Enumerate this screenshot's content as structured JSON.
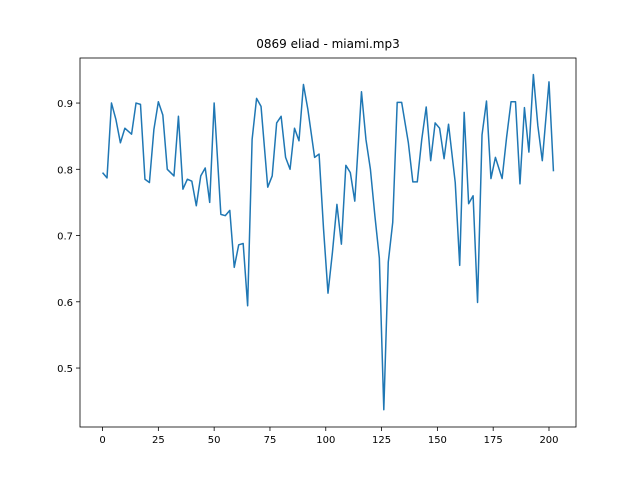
{
  "chart_data": {
    "type": "line",
    "title": "0869 eliad - miami.mp3",
    "x": [
      0,
      2,
      4,
      6,
      8,
      10,
      13,
      15,
      17,
      19,
      21,
      23,
      25,
      27,
      29,
      32,
      34,
      36,
      38,
      40,
      42,
      44,
      46,
      48,
      50,
      53,
      55,
      57,
      59,
      61,
      63,
      65,
      67,
      69,
      71,
      74,
      76,
      78,
      80,
      82,
      84,
      86,
      88,
      90,
      92,
      95,
      97,
      99,
      101,
      103,
      105,
      107,
      109,
      111,
      113,
      116,
      118,
      120,
      122,
      124,
      126,
      128,
      130,
      132,
      134,
      137,
      139,
      141,
      143,
      145,
      147,
      149,
      151,
      153,
      155,
      158,
      160,
      162,
      164,
      166,
      168,
      170,
      172,
      174,
      176,
      179,
      181,
      183,
      185,
      187,
      189,
      191,
      193,
      195,
      197,
      200,
      202
    ],
    "series": [
      {
        "color": "#1f77b4",
        "values": [
          0.795,
          0.787,
          0.9,
          0.875,
          0.84,
          0.862,
          0.853,
          0.9,
          0.898,
          0.785,
          0.78,
          0.86,
          0.902,
          0.882,
          0.8,
          0.79,
          0.88,
          0.77,
          0.785,
          0.782,
          0.745,
          0.79,
          0.802,
          0.75,
          0.9,
          0.732,
          0.73,
          0.738,
          0.652,
          0.686,
          0.688,
          0.594,
          0.845,
          0.907,
          0.895,
          0.773,
          0.79,
          0.87,
          0.88,
          0.818,
          0.8,
          0.862,
          0.843,
          0.928,
          0.89,
          0.818,
          0.823,
          0.71,
          0.613,
          0.675,
          0.747,
          0.687,
          0.806,
          0.795,
          0.752,
          0.917,
          0.845,
          0.8,
          0.73,
          0.666,
          0.437,
          0.66,
          0.72,
          0.901,
          0.901,
          0.84,
          0.781,
          0.781,
          0.845,
          0.894,
          0.813,
          0.87,
          0.862,
          0.816,
          0.868,
          0.78,
          0.655,
          0.886,
          0.748,
          0.76,
          0.599,
          0.852,
          0.903,
          0.786,
          0.818,
          0.786,
          0.848,
          0.902,
          0.902,
          0.778,
          0.893,
          0.826,
          0.943,
          0.866,
          0.813,
          0.932,
          0.797
        ]
      }
    ],
    "xlim": [
      -10.1,
      212.1
    ],
    "ylim": [
      0.411,
      0.968
    ],
    "xticks": [
      0,
      25,
      50,
      75,
      100,
      125,
      150,
      175,
      200
    ],
    "yticks": [
      0.5,
      0.6,
      0.7,
      0.8,
      0.9
    ]
  }
}
